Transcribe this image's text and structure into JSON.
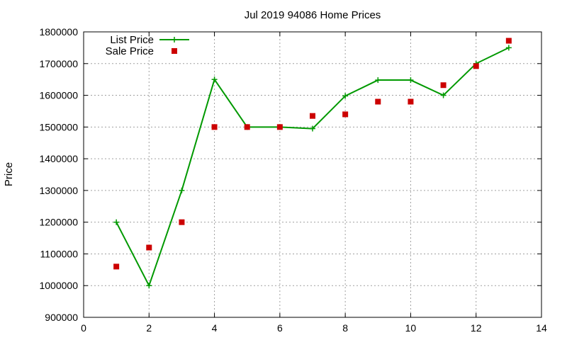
{
  "chart_data": {
    "type": "line",
    "title": "Jul 2019 94086 Home Prices",
    "xlabel": "",
    "ylabel": "Price",
    "xlim": [
      0,
      14
    ],
    "ylim": [
      900000,
      1800000
    ],
    "x_ticks": [
      "0",
      "2",
      "4",
      "6",
      "8",
      "10",
      "12",
      "14"
    ],
    "y_ticks": [
      "900000",
      "1000000",
      "1100000",
      "1200000",
      "1300000",
      "1400000",
      "1500000",
      "1600000",
      "1700000",
      "1800000"
    ],
    "grid": true,
    "legend_position": "top-left",
    "series": [
      {
        "name": "List Price",
        "style": "line-with-plus",
        "color": "#009900",
        "x": [
          1,
          2,
          3,
          4,
          5,
          6,
          7,
          8,
          9,
          10,
          11,
          12,
          13
        ],
        "y": [
          1200000,
          1000000,
          1300000,
          1650000,
          1500000,
          1500000,
          1495000,
          1598000,
          1648000,
          1648000,
          1600000,
          1700000,
          1750000
        ]
      },
      {
        "name": "Sale Price",
        "style": "square-points",
        "color": "#cc0000",
        "x": [
          1,
          2,
          3,
          4,
          5,
          6,
          7,
          8,
          9,
          10,
          11,
          12,
          13
        ],
        "y": [
          1060000,
          1120000,
          1200000,
          1500000,
          1500000,
          1500000,
          1535000,
          1540000,
          1580000,
          1580000,
          1632000,
          1692000,
          1772000
        ]
      }
    ]
  }
}
